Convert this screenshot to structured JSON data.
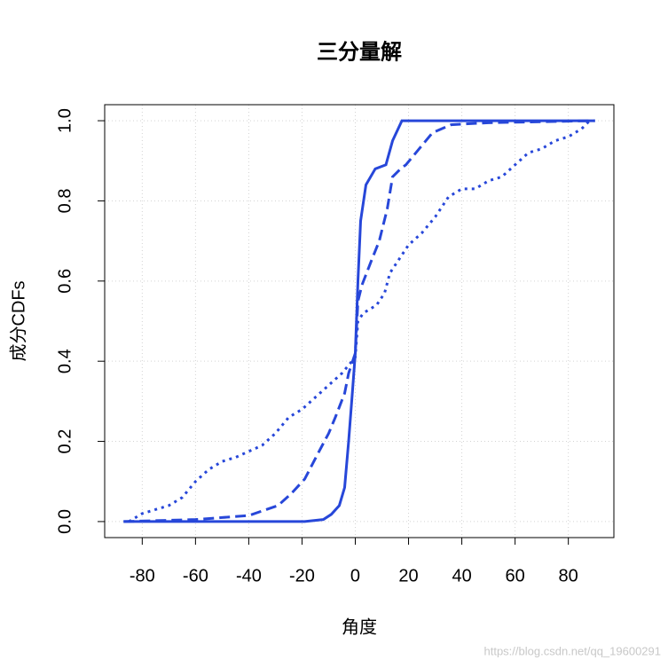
{
  "chart_data": {
    "type": "line",
    "title": "三分量解",
    "x_label": "角度",
    "y_label": "成分CDFs",
    "watermark": "https://blog.csdn.net/qq_19600291",
    "xlim": [
      -94.1,
      97.1
    ],
    "ylim": [
      -0.04,
      1.04
    ],
    "xticks": [
      -80,
      -60,
      -40,
      -20,
      0,
      20,
      40,
      60,
      80
    ],
    "yticks": [
      {
        "value": 0,
        "label": "0.0"
      },
      0.2,
      0.4,
      0.6,
      0.8,
      {
        "value": 1,
        "label": "1.0"
      }
    ],
    "grid": true,
    "series": [
      {
        "color": "#2747d9",
        "line_style": "solid",
        "x": [
          -87,
          -19,
          -12,
          -9,
          -6,
          -4,
          -2.5,
          -1,
          0,
          1,
          2,
          4,
          7.5,
          11.5,
          14,
          17.5,
          90
        ],
        "values": [
          0,
          0,
          0.005,
          0.018,
          0.04,
          0.085,
          0.2,
          0.33,
          0.42,
          0.6,
          0.75,
          0.84,
          0.88,
          0.89,
          0.95,
          1,
          1
        ]
      },
      {
        "color": "#2747d9",
        "line_style": "dashed",
        "x": [
          -87,
          -60,
          -50,
          -40,
          -29,
          -24,
          -19,
          -14,
          -10,
          -7.5,
          -4,
          -2.5,
          0,
          1,
          2.5,
          6,
          9,
          12,
          14,
          17,
          19,
          24,
          29,
          36,
          50,
          90
        ],
        "values": [
          0,
          0.005,
          0.01,
          0.015,
          0.04,
          0.07,
          0.106,
          0.17,
          0.22,
          0.26,
          0.32,
          0.37,
          0.42,
          0.55,
          0.59,
          0.65,
          0.7,
          0.78,
          0.86,
          0.88,
          0.89,
          0.93,
          0.97,
          0.99,
          0.995,
          1
        ]
      },
      {
        "color": "#2747d9",
        "line_style": "dotted",
        "x": [
          -85,
          -80,
          -70,
          -65,
          -60,
          -55,
          -50,
          -45,
          -40,
          -35,
          -30,
          -25,
          -20,
          -15,
          -10,
          -5,
          0,
          1,
          3,
          8,
          11,
          13,
          16,
          20,
          25,
          30,
          35,
          40,
          45,
          50,
          55,
          60,
          65,
          70,
          75,
          80,
          85,
          88
        ],
        "values": [
          0,
          0.02,
          0.04,
          0.06,
          0.1,
          0.13,
          0.15,
          0.16,
          0.175,
          0.19,
          0.22,
          0.26,
          0.28,
          0.31,
          0.34,
          0.37,
          0.41,
          0.5,
          0.52,
          0.54,
          0.57,
          0.62,
          0.65,
          0.69,
          0.72,
          0.76,
          0.81,
          0.83,
          0.83,
          0.85,
          0.86,
          0.89,
          0.92,
          0.93,
          0.95,
          0.96,
          0.98,
          1
        ]
      }
    ]
  }
}
